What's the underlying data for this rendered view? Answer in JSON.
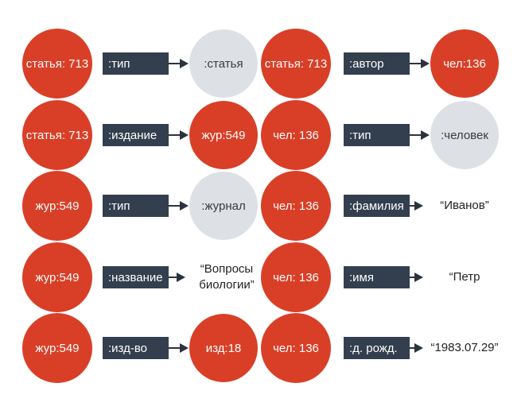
{
  "colors": {
    "subject": "#d93f27",
    "object_node": "#d93f27",
    "object_class": "#dde1e6",
    "predicate": "#333f4e",
    "arrow": "#2b3340",
    "class_text": "#3a3a3a"
  },
  "left_column": [
    {
      "subject": "статья: 713",
      "predicate": ":тип",
      "object": ":статья",
      "object_kind": "class"
    },
    {
      "subject": "статья: 713",
      "predicate": ":издание",
      "object": "жур:549",
      "object_kind": "node"
    },
    {
      "subject": "жур:549",
      "predicate": ":тип",
      "object": ":журнал",
      "object_kind": "class"
    },
    {
      "subject": "жур:549",
      "predicate": ":название",
      "object": "“Вопросы биологии”",
      "object_kind": "literal"
    },
    {
      "subject": "жур:549",
      "predicate": ":изд-во",
      "object": "изд:18",
      "object_kind": "node"
    }
  ],
  "right_column": [
    {
      "subject": "статья: 713",
      "predicate": ":автор",
      "object": "чел:136",
      "object_kind": "node"
    },
    {
      "subject": "чел: 136",
      "predicate": ":тип",
      "object": ":человек",
      "object_kind": "class"
    },
    {
      "subject": "чел: 136",
      "predicate": ":фамилия",
      "object": "“Иванов”",
      "object_kind": "literal"
    },
    {
      "subject": "чел: 136",
      "predicate": ":имя",
      "object": "“Петр",
      "object_kind": "literal"
    },
    {
      "subject": "чел: 136",
      "predicate": ":д. рожд.",
      "object": "“1983.07.29”",
      "object_kind": "literal"
    }
  ]
}
